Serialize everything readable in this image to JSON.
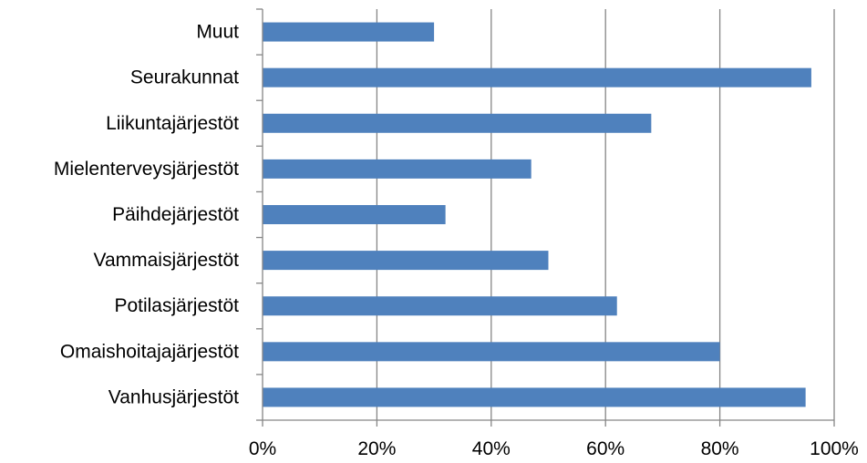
{
  "chart_data": {
    "type": "bar",
    "orientation": "horizontal",
    "categories": [
      "Muut",
      "Seurakunnat",
      "Liikuntajärjestöt",
      "Mielenterveysjärjestöt",
      "Päihdejärjestöt",
      "Vammaisjärjestöt",
      "Potilasjärjestöt",
      "Omaishoitajajärjestöt",
      "Vanhusjärjestöt"
    ],
    "values": [
      30,
      96,
      68,
      47,
      32,
      50,
      62,
      80,
      95
    ],
    "value_unit": "%",
    "xlim": [
      0,
      100
    ],
    "x_ticks": [
      "0%",
      "20%",
      "40%",
      "60%",
      "80%",
      "100%"
    ],
    "x_tick_values": [
      0,
      20,
      40,
      60,
      80,
      100
    ],
    "grid": "vertical",
    "legend": "none",
    "bar_color": "#4F81BD",
    "grid_color": "#868686",
    "axis_color": "#868686"
  }
}
